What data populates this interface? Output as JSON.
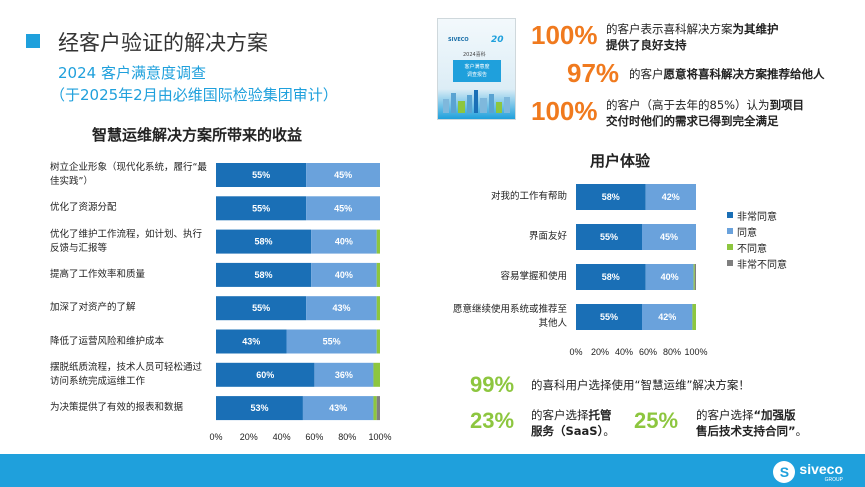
{
  "header": {
    "title": "经客户验证的解决方案",
    "survey_title": "2024 客户满意度调查",
    "audit_note": "（于2025年2月由必维国际检验集团审计）"
  },
  "report_thumbnail": {
    "logo": "SIVECO",
    "badge": "20",
    "year": "2024喜科",
    "band_lines": [
      "客户满意度",
      "调查报告"
    ]
  },
  "top_stats": [
    {
      "value": "100%",
      "text_plain": "的客户表示喜科解决方案",
      "text_bold": "为其维护",
      "line2_bold": "提供了良好支持"
    },
    {
      "value": "97%",
      "text_plain": "的客户",
      "text_bold": "愿意将喜科解决方案推荐给他人",
      "line2_bold": ""
    },
    {
      "value": "100%",
      "text_plain": "的客户（高于去年的85%）认为",
      "text_bold": "到项目",
      "line2_bold": "交付时他们的需求已得到完全满足"
    }
  ],
  "chart_data": [
    {
      "type": "bar",
      "orientation": "horizontal-stacked",
      "title": "智慧运维解决方案所带来的收益",
      "categories": [
        "树立企业形象（现代化系统，履行“最佳实践”）",
        "优化了资源分配",
        "优化了维护工作流程，如计划、执行反馈与汇报等",
        "提高了工作效率和质量",
        "加深了对资产的了解",
        "降低了运营风险和维护成本",
        "摆脱纸质流程，技术人员可轻松通过访问系统完成运维工作",
        "为决策提供了有效的报表和数据"
      ],
      "series": [
        {
          "name": "非常同意",
          "color": "#1a6fb6",
          "values": [
            55,
            55,
            58,
            58,
            55,
            43,
            60,
            53
          ]
        },
        {
          "name": "同意",
          "color": "#6aa2dc",
          "values": [
            45,
            45,
            40,
            40,
            43,
            55,
            36,
            43
          ]
        },
        {
          "name": "不同意",
          "color": "#8dc63f",
          "values": [
            0,
            0,
            2,
            2,
            2,
            2,
            4,
            2
          ]
        },
        {
          "name": "非常不同意",
          "color": "#7f7f7f",
          "values": [
            0,
            0,
            0,
            0,
            0,
            0,
            0,
            2
          ]
        }
      ],
      "xticks": [
        "0%",
        "20%",
        "40%",
        "60%",
        "80%",
        "100%"
      ],
      "xlim": [
        0,
        100
      ]
    },
    {
      "type": "bar",
      "orientation": "horizontal-stacked",
      "title": "用户体验",
      "categories": [
        "对我的工作有帮助",
        "界面友好",
        "容易掌握和使用",
        "愿意继续使用系统或推荐至其他人"
      ],
      "series": [
        {
          "name": "非常同意",
          "color": "#1a6fb6",
          "values": [
            58,
            55,
            58,
            55
          ]
        },
        {
          "name": "同意",
          "color": "#6aa2dc",
          "values": [
            42,
            45,
            40,
            42
          ]
        },
        {
          "name": "不同意",
          "color": "#8dc63f",
          "values": [
            0,
            0,
            1,
            3
          ]
        },
        {
          "name": "非常不同意",
          "color": "#7f7f7f",
          "values": [
            0,
            0,
            1,
            0
          ]
        }
      ],
      "xticks": [
        "0%",
        "20%",
        "40%",
        "60%",
        "80%",
        "100%"
      ],
      "xlim": [
        0,
        100
      ],
      "legend": [
        "非常同意",
        "同意",
        "不同意",
        "非常不同意"
      ]
    }
  ],
  "bottom_stats": {
    "row1": {
      "value": "99%",
      "text": "的喜科用户选择使用“智慧运维”解决方案！"
    },
    "row2_left": {
      "value": "23%",
      "line1_plain": "的客户选择",
      "line1_bold": "托管",
      "line2_bold": "服务（SaaS）",
      "line2_plain": "。"
    },
    "row2_right": {
      "value": "25%",
      "line1_plain": "的客户选择",
      "line1_bold": "“加强版",
      "line2_bold": "售后技术支持合同”",
      "line2_plain": "。"
    }
  },
  "footer": {
    "brand": "siveco",
    "tagline": "GROUP"
  },
  "colors": {
    "accent": "#1fa0dc",
    "orange": "#f07a1e",
    "green": "#8dc63f"
  }
}
